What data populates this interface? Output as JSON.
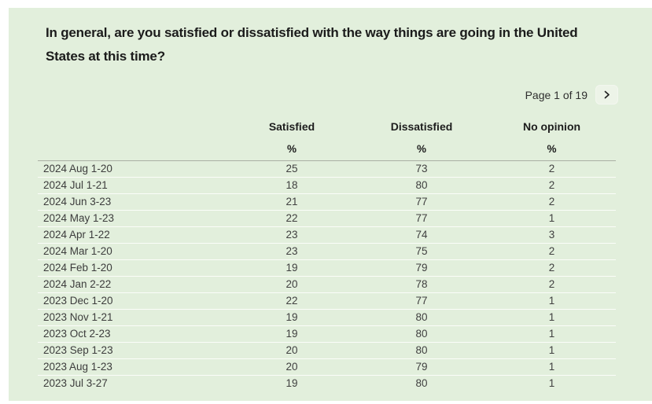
{
  "question": {
    "text": "In general, are you satisfied or dissatisfied with the way things are going in the United States at this time?"
  },
  "pagination": {
    "label": "Page 1 of 19",
    "next_icon": "chevron-right"
  },
  "table": {
    "columns": [
      "Satisfied",
      "Dissatisfied",
      "No opinion"
    ],
    "unit": "%",
    "rows": [
      {
        "date": "2024 Aug 1-20",
        "satisfied": 25,
        "dissatisfied": 73,
        "no_opinion": 2
      },
      {
        "date": "2024 Jul 1-21",
        "satisfied": 18,
        "dissatisfied": 80,
        "no_opinion": 2
      },
      {
        "date": "2024 Jun 3-23",
        "satisfied": 21,
        "dissatisfied": 77,
        "no_opinion": 2
      },
      {
        "date": "2024 May 1-23",
        "satisfied": 22,
        "dissatisfied": 77,
        "no_opinion": 1
      },
      {
        "date": "2024 Apr 1-22",
        "satisfied": 23,
        "dissatisfied": 74,
        "no_opinion": 3
      },
      {
        "date": "2024 Mar 1-20",
        "satisfied": 23,
        "dissatisfied": 75,
        "no_opinion": 2
      },
      {
        "date": "2024 Feb 1-20",
        "satisfied": 19,
        "dissatisfied": 79,
        "no_opinion": 2
      },
      {
        "date": "2024 Jan 2-22",
        "satisfied": 20,
        "dissatisfied": 78,
        "no_opinion": 2
      },
      {
        "date": "2023 Dec 1-20",
        "satisfied": 22,
        "dissatisfied": 77,
        "no_opinion": 1
      },
      {
        "date": "2023 Nov 1-21",
        "satisfied": 19,
        "dissatisfied": 80,
        "no_opinion": 1
      },
      {
        "date": "2023 Oct 2-23",
        "satisfied": 19,
        "dissatisfied": 80,
        "no_opinion": 1
      },
      {
        "date": "2023 Sep 1-23",
        "satisfied": 20,
        "dissatisfied": 80,
        "no_opinion": 1
      },
      {
        "date": "2023 Aug 1-23",
        "satisfied": 20,
        "dissatisfied": 79,
        "no_opinion": 1
      },
      {
        "date": "2023 Jul 3-27",
        "satisfied": 19,
        "dissatisfied": 80,
        "no_opinion": 1
      }
    ]
  },
  "colors": {
    "panel_bg": "#e2efdc",
    "title_text": "#1b1b1b",
    "body_text": "#404040",
    "header_text": "#1d1d1d",
    "header_rule": "#a9afa3",
    "row_divider": "#fbfdf9",
    "button_bg": "#edf4e8",
    "button_border": "#f3f7ef",
    "pager_text": "#2e2e2e"
  }
}
